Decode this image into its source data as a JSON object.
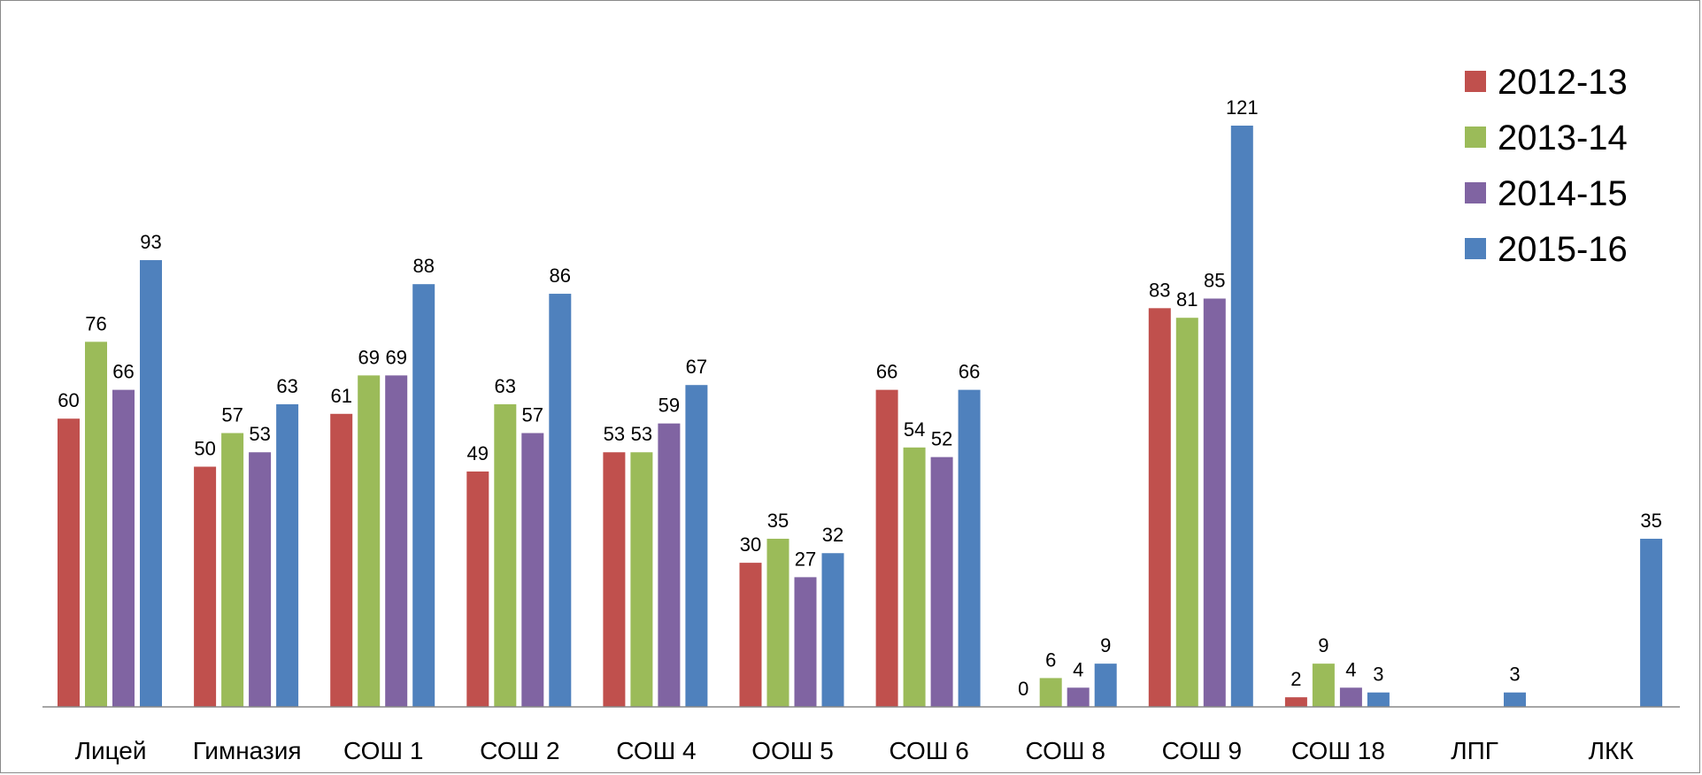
{
  "chart_data": {
    "type": "bar",
    "categories": [
      "Лицей",
      "Гимназия",
      "СОШ 1",
      "СОШ 2",
      "СОШ 4",
      "ООШ 5",
      "СОШ 6",
      "СОШ 8",
      "СОШ 9",
      "СОШ 18",
      "ЛПГ",
      "ЛКК"
    ],
    "series": [
      {
        "name": "2012-13",
        "color": "#C0504D",
        "values": [
          60,
          50,
          61,
          49,
          53,
          30,
          66,
          0,
          83,
          2,
          null,
          null
        ]
      },
      {
        "name": "2013-14",
        "color": "#9BBB59",
        "values": [
          76,
          57,
          69,
          63,
          53,
          35,
          54,
          6,
          81,
          9,
          null,
          null
        ]
      },
      {
        "name": "2014-15",
        "color": "#8064A2",
        "values": [
          66,
          53,
          69,
          57,
          59,
          27,
          52,
          4,
          85,
          4,
          null,
          null
        ]
      },
      {
        "name": "2015-16",
        "color": "#4F81BD",
        "values": [
          93,
          63,
          88,
          86,
          67,
          32,
          66,
          9,
          121,
          3,
          3,
          35
        ]
      }
    ],
    "ylim": [
      0,
      125
    ],
    "grid": false,
    "data_labels": true,
    "legend_position": "top-right"
  }
}
